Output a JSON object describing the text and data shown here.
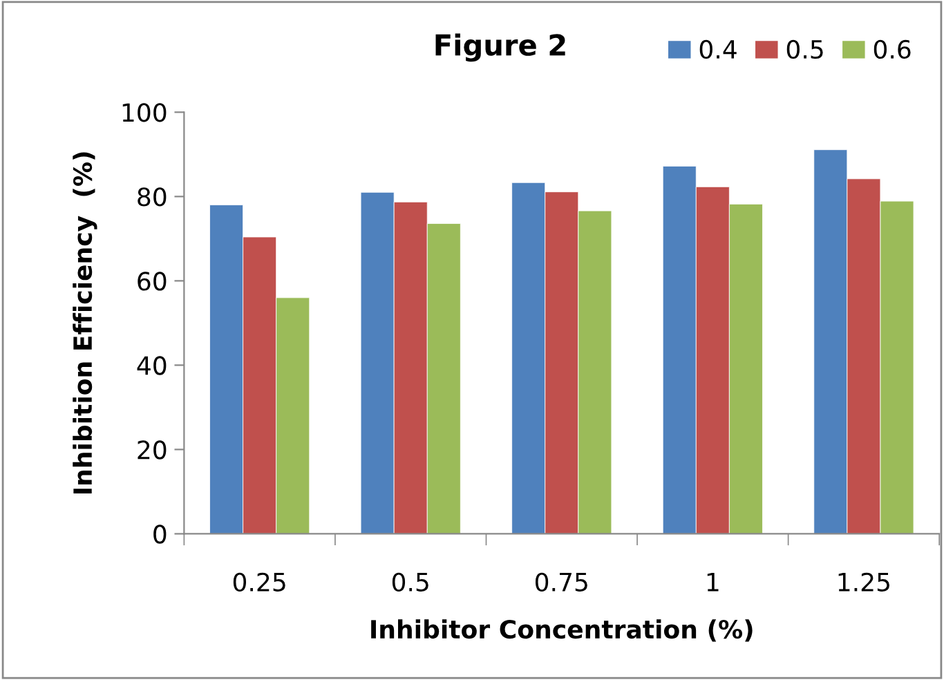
{
  "chart_data": {
    "type": "bar",
    "title": "Figure 2",
    "xlabel": "Inhibitor Concentration (%)",
    "ylabel": "Inhibition Efficiency  (%)",
    "categories": [
      "0.25",
      "0.5",
      "0.75",
      "1",
      "1.25"
    ],
    "series": [
      {
        "name": "0.4",
        "color": "#4f81bd",
        "values": [
          78.0,
          81.0,
          83.3,
          87.2,
          91.1
        ]
      },
      {
        "name": "0.5",
        "color": "#c0504d",
        "values": [
          70.4,
          78.7,
          81.1,
          82.3,
          84.2
        ]
      },
      {
        "name": "0.6",
        "color": "#9bbb59",
        "values": [
          56.0,
          73.6,
          76.6,
          78.2,
          78.9
        ]
      }
    ],
    "ylim": [
      0,
      100
    ],
    "yticks": [
      0,
      20,
      40,
      60,
      80,
      100
    ],
    "grid": false,
    "legend": "top right"
  }
}
